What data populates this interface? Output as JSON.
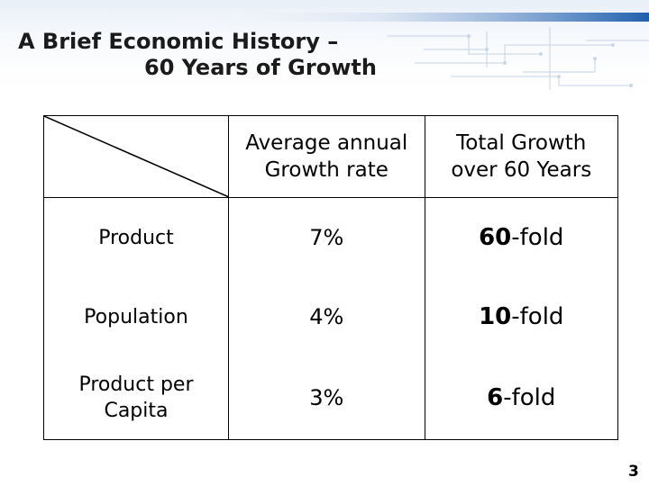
{
  "slide": {
    "title_line1": "A Brief Economic History –",
    "title_line2": "60 Years of Growth",
    "page_number": "3"
  },
  "table": {
    "headers": [
      [
        "Average annual",
        "Growth rate"
      ],
      [
        "Total Growth",
        "over 60 Years"
      ]
    ],
    "rows": [
      {
        "label": [
          "Product"
        ],
        "rate": "7%",
        "total_number": "60",
        "total_suffix": "-fold"
      },
      {
        "label": [
          "Population"
        ],
        "rate": "4%",
        "total_number": "10",
        "total_suffix": "-fold"
      },
      {
        "label": [
          "Product per",
          "Capita"
        ],
        "rate": "3%",
        "total_number": "6",
        "total_suffix": "-fold"
      }
    ]
  },
  "colors": {
    "banner_blue": "#1f5fae",
    "banner_light": "#d9e4f2",
    "text": "#000000"
  }
}
